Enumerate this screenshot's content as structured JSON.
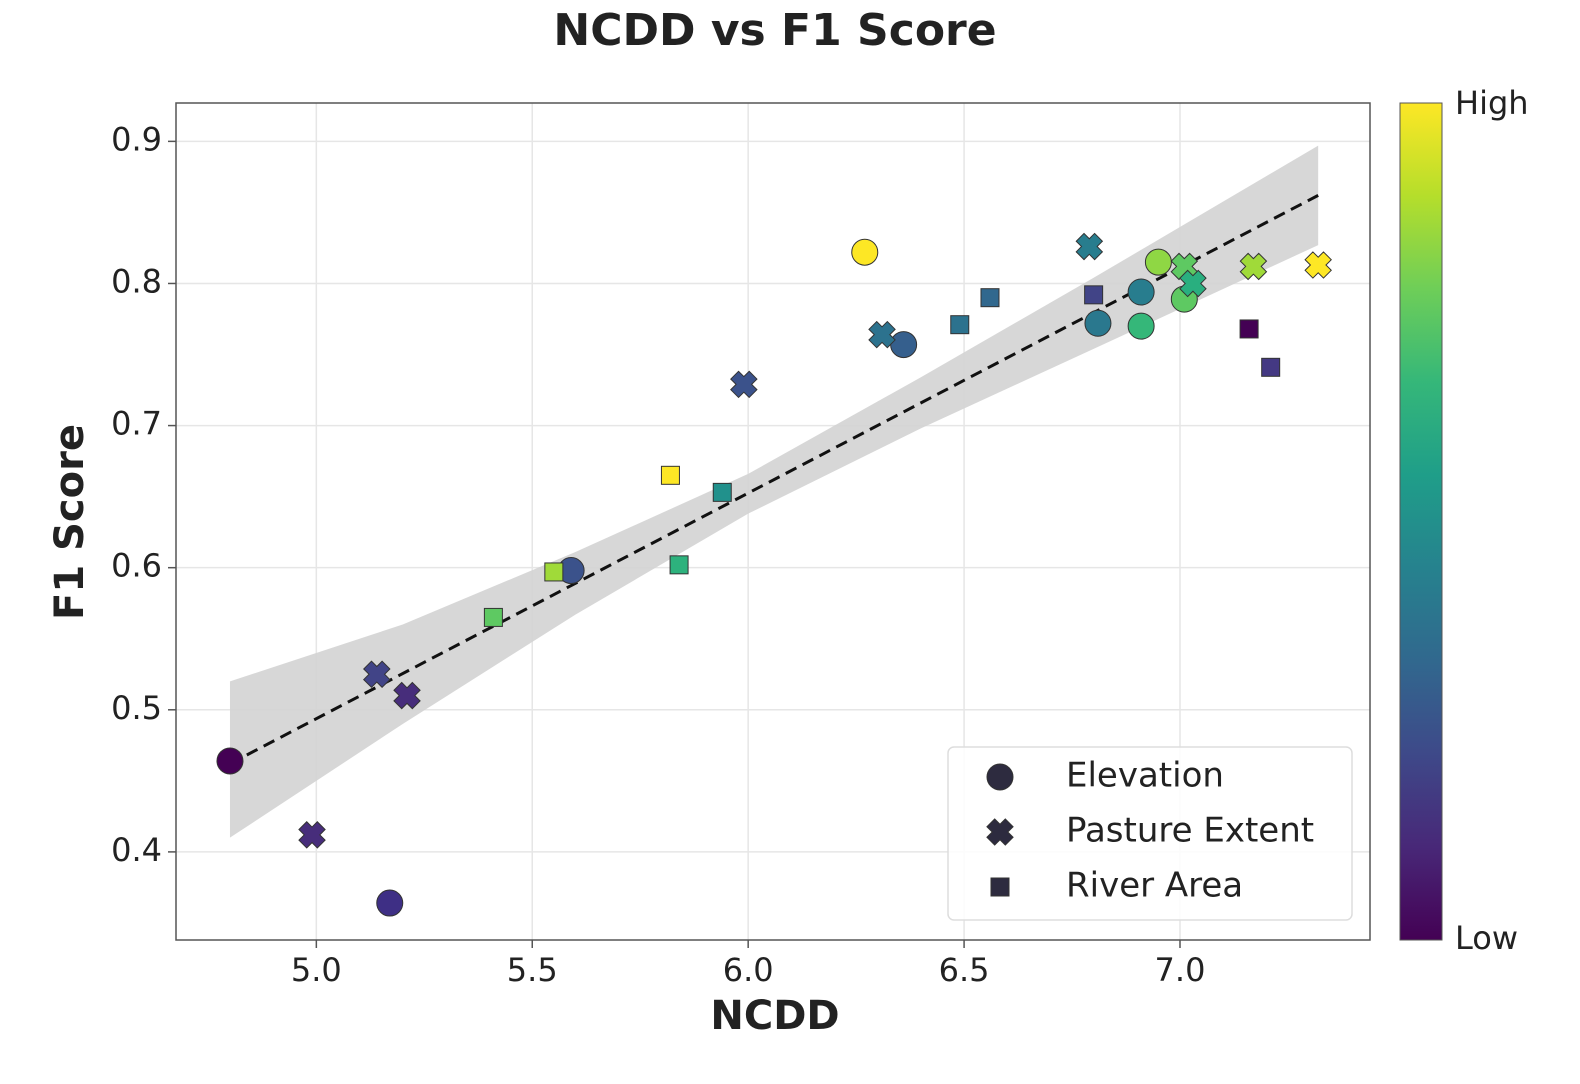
{
  "chart_data": {
    "type": "scatter",
    "title": "NCDD vs F1 Score",
    "x_label": "NCDD",
    "y_label": "F1 Score",
    "xlim": [
      4.675,
      7.44
    ],
    "ylim": [
      0.338,
      0.927
    ],
    "xticks": [
      {
        "value": 5,
        "label": "5.0"
      },
      5.5,
      {
        "value": 6,
        "label": "6.0"
      },
      6.5,
      {
        "value": 7,
        "label": "7.0"
      }
    ],
    "yticks": [
      0.4,
      0.5,
      0.6,
      0.7,
      0.8,
      0.9
    ],
    "grid": true,
    "legend_position": "lower right",
    "legend_color": "#2d2b3f",
    "series": [
      {
        "name": "Elevation",
        "marker": "circle",
        "x": [
          4.8,
          5.17,
          5.59,
          6.27,
          6.36,
          6.81,
          6.91,
          6.91,
          6.95,
          7.01
        ],
        "values": [
          0.464,
          0.364,
          0.598,
          0.822,
          0.757,
          0.772,
          0.794,
          0.77,
          0.815,
          0.789
        ],
        "colors": [
          "#440154",
          "#3e2f85",
          "#3b528b",
          "#fde725",
          "#355f8d",
          "#2a788e",
          "#287d8e",
          "#35b779",
          "#8fd744",
          "#5ec962"
        ]
      },
      {
        "name": "Pasture Extent",
        "marker": "x",
        "x": [
          4.99,
          5.14,
          5.21,
          5.99,
          6.31,
          6.79,
          7.01,
          7.03,
          7.17,
          7.32
        ],
        "values": [
          0.412,
          0.525,
          0.51,
          0.729,
          0.764,
          0.826,
          0.812,
          0.8,
          0.812,
          0.813
        ],
        "colors": [
          "#472d7b",
          "#414487",
          "#472d7b",
          "#3b528b",
          "#2c728e",
          "#287d8e",
          "#5ec962",
          "#29af7f",
          "#a0da39",
          "#fde725"
        ]
      },
      {
        "name": "River Area",
        "marker": "square",
        "x": [
          5.41,
          5.55,
          5.82,
          5.84,
          5.94,
          6.49,
          6.56,
          6.8,
          7.16,
          7.21
        ],
        "values": [
          0.565,
          0.597,
          0.665,
          0.602,
          0.653,
          0.771,
          0.79,
          0.792,
          0.768,
          0.741
        ],
        "colors": [
          "#5ec962",
          "#a0da39",
          "#fde725",
          "#2db27d",
          "#21918c",
          "#2c728e",
          "#31688e",
          "#414487",
          "#440154",
          "#443983"
        ]
      }
    ],
    "fit": {
      "x": [
        4.8,
        7.32
      ],
      "y": [
        0.462,
        0.862
      ],
      "color": "#111111"
    },
    "band": {
      "x": [
        4.8,
        5.2,
        5.6,
        6.0,
        6.4,
        6.8,
        7.32
      ],
      "lower": [
        0.41,
        0.49,
        0.567,
        0.638,
        0.698,
        0.754,
        0.827
      ],
      "upper": [
        0.52,
        0.56,
        0.611,
        0.666,
        0.734,
        0.804,
        0.897
      ],
      "color": "#d3d3d3"
    },
    "colorbar": {
      "high_label": "High",
      "low_label": "Low",
      "colors": [
        "#440154",
        "#482878",
        "#3e4989",
        "#31688e",
        "#26828e",
        "#1f9e89",
        "#35b779",
        "#6ece58",
        "#b5de2b",
        "#fde725"
      ]
    }
  }
}
